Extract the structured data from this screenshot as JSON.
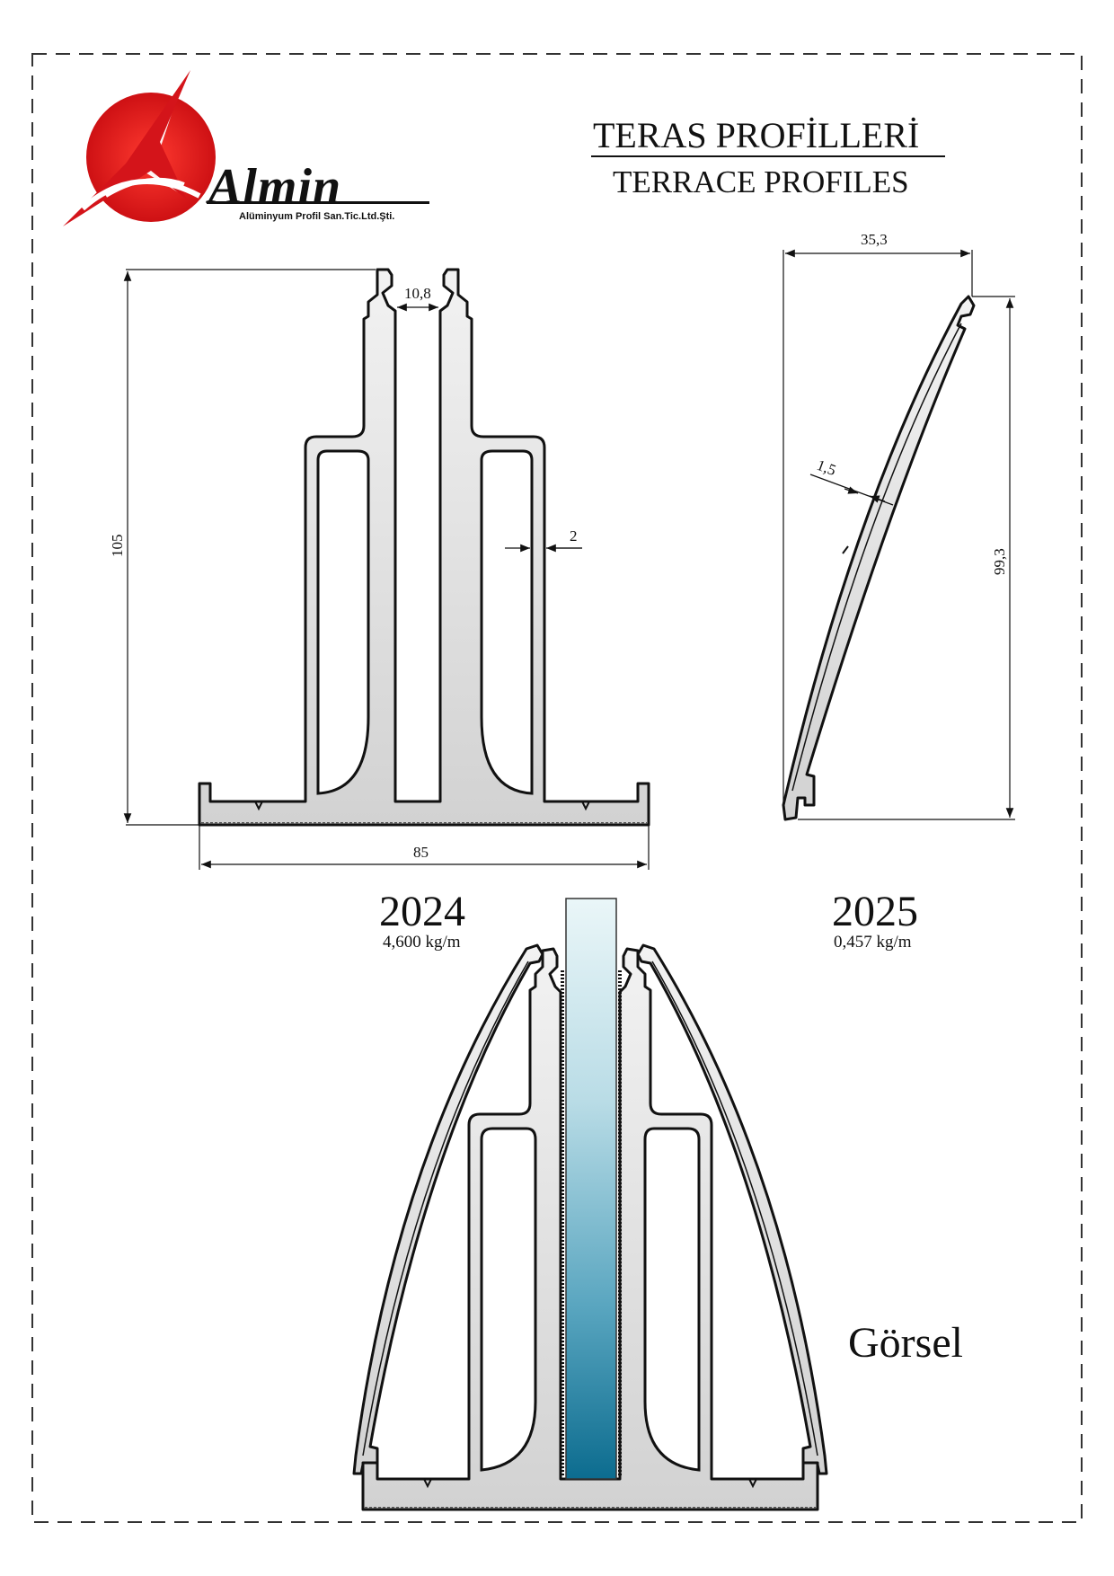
{
  "logo": {
    "brand_name": "Almin",
    "company_line": "Alüminyum Profil San.Tic.Ltd.Şti.",
    "colors": {
      "red": "#e0161b",
      "dark": "#111111"
    }
  },
  "header": {
    "title_tr": "TERAS PROFİLLERİ",
    "title_en": "TERRACE PROFILES"
  },
  "profile_2024": {
    "code": "2024",
    "weight": "4,600 kg/m",
    "dims": {
      "height": "105",
      "width": "85",
      "slot": "10,8",
      "wall": "2"
    }
  },
  "profile_2025": {
    "code": "2025",
    "weight": "0,457 kg/m",
    "dims": {
      "width": "35,3",
      "height": "99,3",
      "thickness": "1,5"
    }
  },
  "assembly": {
    "label": "Görsel"
  },
  "colors": {
    "line": "#111111",
    "profile_fill": "#e4e4e4",
    "glass_top": "#e8f4f7",
    "glass_bottom": "#0e6f92",
    "border": "#333333"
  }
}
